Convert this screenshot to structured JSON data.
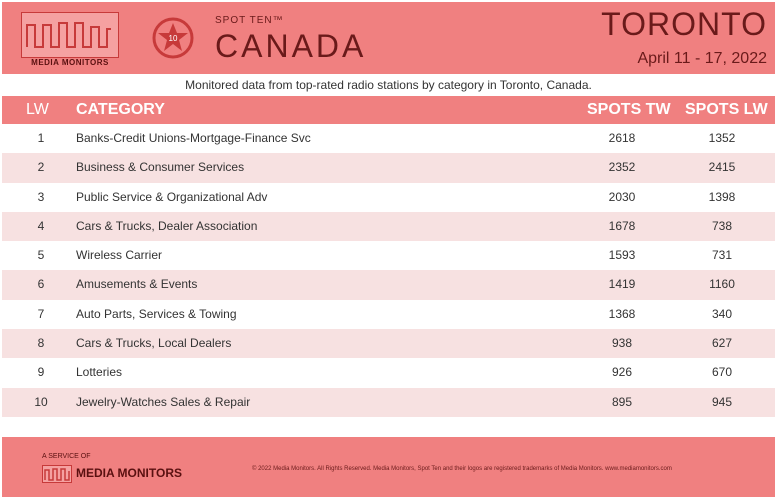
{
  "brand": {
    "logo_label": "MEDIA MONITORS",
    "badge_number": "10",
    "spot_ten": "SPOT TEN™",
    "country": "CANADA"
  },
  "market": {
    "city": "TORONTO",
    "dates": "April 11 - 17, 2022"
  },
  "subtitle": "Monitored data from top-rated radio stations by category in Toronto, Canada.",
  "table": {
    "headers": {
      "lw": "LW",
      "category": "CATEGORY",
      "spots_tw": "SPOTS TW",
      "spots_lw": "SPOTS LW"
    },
    "rows": [
      {
        "lw": "1",
        "category": "Banks-Credit Unions-Mortgage-Finance Svc",
        "spots_tw": "2618",
        "spots_lw": "1352"
      },
      {
        "lw": "2",
        "category": "Business & Consumer Services",
        "spots_tw": "2352",
        "spots_lw": "2415"
      },
      {
        "lw": "3",
        "category": "Public Service & Organizational Adv",
        "spots_tw": "2030",
        "spots_lw": "1398"
      },
      {
        "lw": "4",
        "category": "Cars & Trucks, Dealer Association",
        "spots_tw": "1678",
        "spots_lw": "738"
      },
      {
        "lw": "5",
        "category": "Wireless Carrier",
        "spots_tw": "1593",
        "spots_lw": "731"
      },
      {
        "lw": "6",
        "category": "Amusements & Events",
        "spots_tw": "1419",
        "spots_lw": "1160"
      },
      {
        "lw": "7",
        "category": "Auto Parts, Services & Towing",
        "spots_tw": "1368",
        "spots_lw": "340"
      },
      {
        "lw": "8",
        "category": "Cars & Trucks, Local Dealers",
        "spots_tw": "938",
        "spots_lw": "627"
      },
      {
        "lw": "9",
        "category": "Lotteries",
        "spots_tw": "926",
        "spots_lw": "670"
      },
      {
        "lw": "10",
        "category": "Jewelry-Watches Sales & Repair",
        "spots_tw": "895",
        "spots_lw": "945"
      }
    ]
  },
  "footer": {
    "service": "A SERVICE OF",
    "logo_name": "MEDIA MONITORS",
    "copyright": "© 2022 Media Monitors. All Rights Reserved. Media Monitors, Spot Ten and their logos are registered trademarks of Media Monitors. www.mediamonitors.com"
  },
  "colors": {
    "accent": "#f08080",
    "stripe": "#f7e1e1",
    "dark_text": "#6a1a1a"
  }
}
